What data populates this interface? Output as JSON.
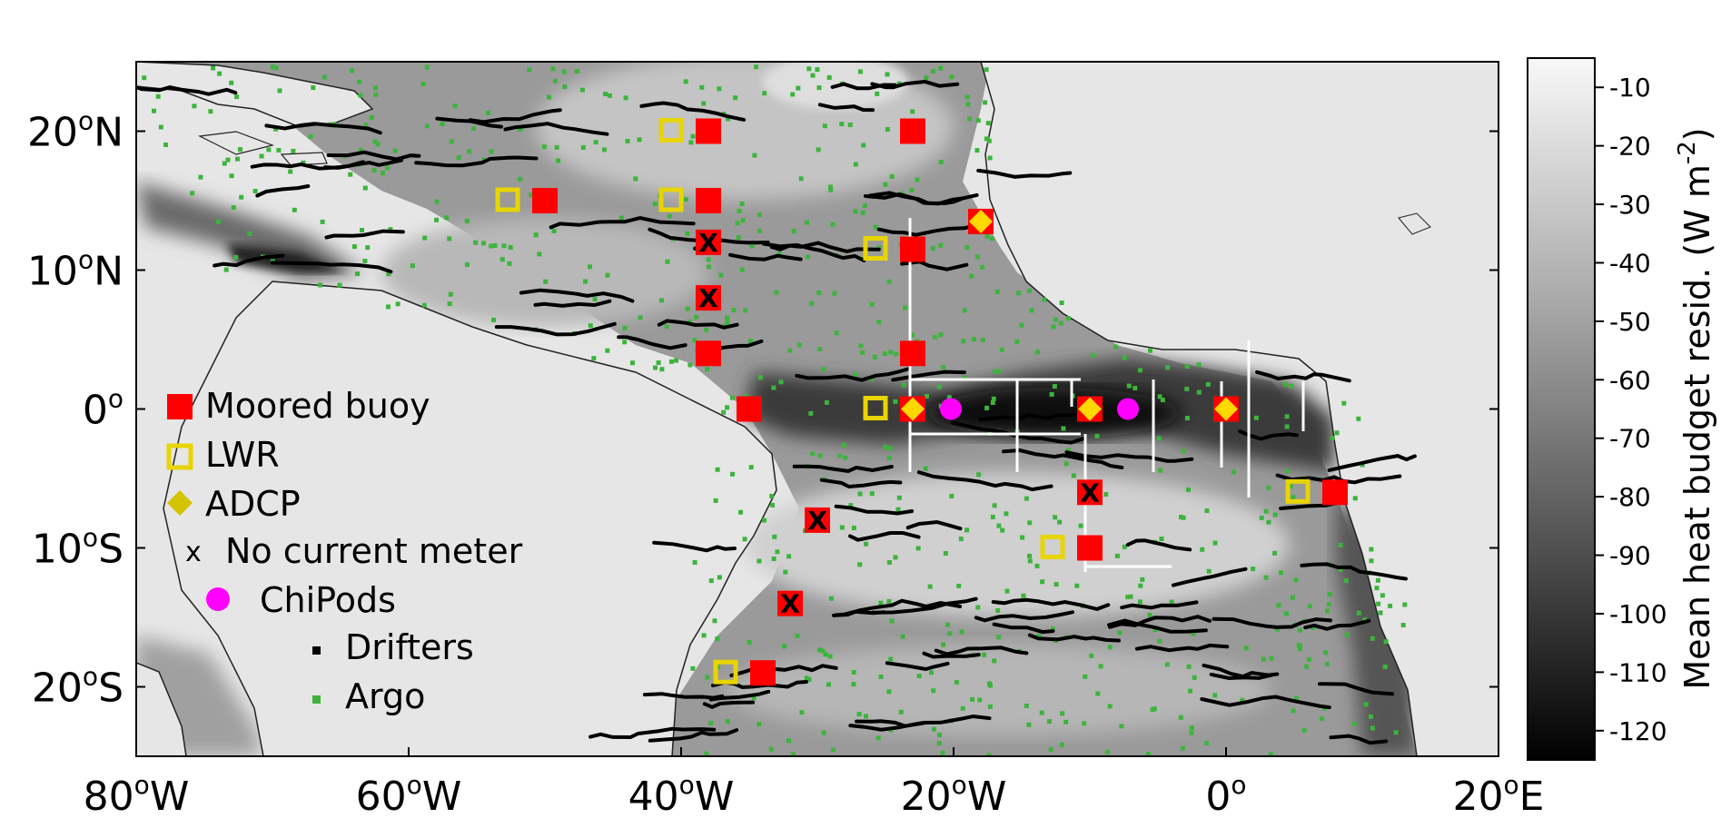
{
  "map": {
    "extent": {
      "lon": [
        -80,
        20
      ],
      "lat": [
        -25,
        25
      ]
    },
    "x_ticks": [
      {
        "lon": -80,
        "label": "80",
        "suffix": "W"
      },
      {
        "lon": -60,
        "label": "60",
        "suffix": "W"
      },
      {
        "lon": -40,
        "label": "40",
        "suffix": "W"
      },
      {
        "lon": -20,
        "label": "20",
        "suffix": "W"
      },
      {
        "lon": 0,
        "label": "0",
        "suffix": ""
      },
      {
        "lon": 20,
        "label": "20",
        "suffix": "E"
      }
    ],
    "y_ticks": [
      {
        "lat": 20,
        "label": "20",
        "suffix": "N"
      },
      {
        "lat": 10,
        "label": "10",
        "suffix": "N"
      },
      {
        "lat": 0,
        "label": "0",
        "suffix": ""
      },
      {
        "lat": -10,
        "label": "10",
        "suffix": "S"
      },
      {
        "lat": -20,
        "label": "20",
        "suffix": "S"
      }
    ],
    "degree_symbol": "o",
    "colors": {
      "land": "#e6e6e6",
      "moored": "#ff0000",
      "lwr": "#e8d400",
      "adcp": "#ffd800",
      "chipods": "#ff00ff",
      "drifters": "#000000",
      "argo": "#3cb43c",
      "sections": "#ffffff"
    }
  },
  "legend": {
    "moored": "Moored buoy",
    "lwr": "LWR",
    "adcp": "ADCP",
    "nocurrent": "No current meter",
    "nocurrent_marker": "x",
    "chipods": "ChiPods",
    "drifters": "Drifters",
    "argo": "Argo"
  },
  "colorbar": {
    "label": "Mean heat budget resid. (W m",
    "label_sup": "-2",
    "label_close": ")",
    "ticks": [
      "-10",
      "-20",
      "-30",
      "-40",
      "-50",
      "-60",
      "-70",
      "-80",
      "-90",
      "-100",
      "-110",
      "-120"
    ],
    "range": [
      -125,
      -5
    ],
    "colormap": "gray"
  },
  "moorings": [
    {
      "lon": -38,
      "lat": 20,
      "lwr": true
    },
    {
      "lon": -38,
      "lat": 15,
      "lwr": true
    },
    {
      "lon": -38,
      "lat": 12,
      "nocurrent": true
    },
    {
      "lon": -38,
      "lat": 8,
      "nocurrent": true
    },
    {
      "lon": -38,
      "lat": 4
    },
    {
      "lon": -35,
      "lat": 0
    },
    {
      "lon": -50,
      "lat": 15,
      "lwr": true
    },
    {
      "lon": -23,
      "lat": 20
    },
    {
      "lon": -23,
      "lat": 11.5,
      "lwr": true
    },
    {
      "lon": -23,
      "lat": 4
    },
    {
      "lon": -23,
      "lat": 0,
      "lwr": true,
      "adcp": true
    },
    {
      "lon": -18,
      "lat": 13.5,
      "adcp": true
    },
    {
      "lon": -10,
      "lat": 0,
      "adcp": true
    },
    {
      "lon": -10,
      "lat": -6,
      "nocurrent": true
    },
    {
      "lon": -10,
      "lat": -10,
      "lwr": true
    },
    {
      "lon": 0,
      "lat": 0,
      "adcp": true
    },
    {
      "lon": 8,
      "lat": -6,
      "lwr": true
    },
    {
      "lon": -30,
      "lat": -8,
      "nocurrent": true
    },
    {
      "lon": -32,
      "lat": -14,
      "nocurrent": true
    },
    {
      "lon": -34,
      "lat": -19,
      "lwr": true
    }
  ],
  "chipods": [
    {
      "lon": -23,
      "lat": 0
    },
    {
      "lon": -10,
      "lat": 0
    }
  ]
}
